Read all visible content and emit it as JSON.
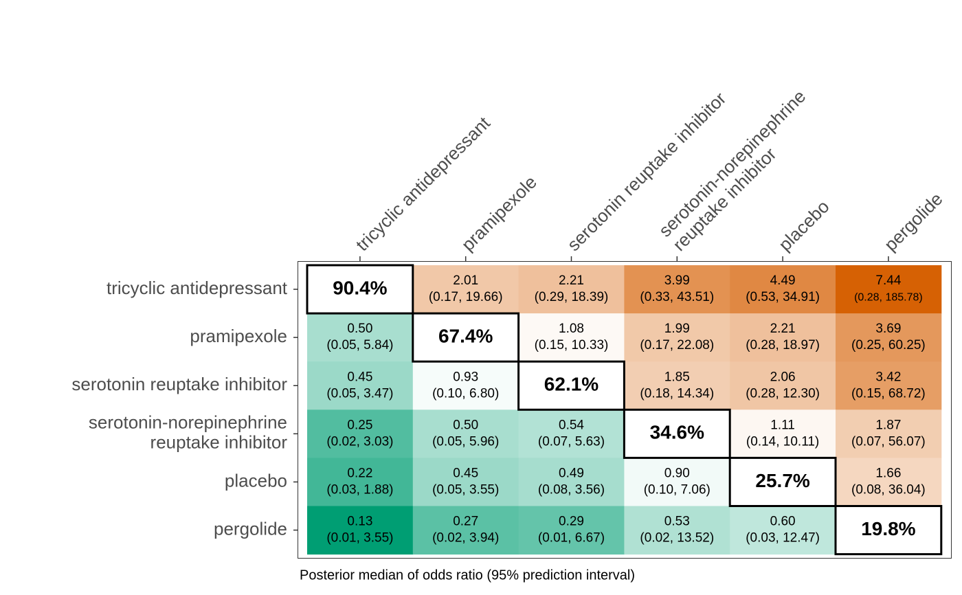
{
  "chart_data": {
    "type": "heatmap",
    "rows": [
      "tricyclic antidepressant",
      "pramipexole",
      "serotonin reuptake inhibitor",
      [
        "serotonin-norepinephrine",
        "reuptake inhibitor"
      ],
      "placebo",
      "pergolide"
    ],
    "columns": [
      "tricyclic antidepressant",
      "pramipexole",
      "serotonin reuptake inhibitor",
      [
        "serotonin-norepinephrine",
        "reuptake inhibitor"
      ],
      "placebo",
      "pergolide"
    ],
    "caption": "Posterior median of odds ratio (95% prediction interval)",
    "color_scale": {
      "low": "#009e73",
      "mid": "#ffffff",
      "high": "#d55e00",
      "log": true
    },
    "cells": [
      [
        {
          "value": 90.4,
          "label": "90.4%",
          "diagonal": true
        },
        {
          "value": 2.01,
          "interval": "(0.17, 19.66)"
        },
        {
          "value": 2.21,
          "interval": "(0.29, 18.39)"
        },
        {
          "value": 3.99,
          "interval": "(0.33, 43.51)"
        },
        {
          "value": 4.49,
          "interval": "(0.53, 34.91)"
        },
        {
          "value": 7.44,
          "interval": "(0.28, 185.78)"
        }
      ],
      [
        {
          "value": 0.5,
          "label": "0.50",
          "interval": "(0.05, 5.84)"
        },
        {
          "value": 67.4,
          "label": "67.4%",
          "diagonal": true
        },
        {
          "value": 1.08,
          "interval": "(0.15, 10.33)"
        },
        {
          "value": 1.99,
          "interval": "(0.17, 22.08)"
        },
        {
          "value": 2.21,
          "interval": "(0.28, 18.97)"
        },
        {
          "value": 3.69,
          "interval": "(0.25, 60.25)"
        }
      ],
      [
        {
          "value": 0.45,
          "interval": "(0.05, 3.47)"
        },
        {
          "value": 0.93,
          "interval": "(0.10, 6.80)"
        },
        {
          "value": 62.1,
          "label": "62.1%",
          "diagonal": true
        },
        {
          "value": 1.85,
          "interval": "(0.18, 14.34)"
        },
        {
          "value": 2.06,
          "interval": "(0.28, 12.30)"
        },
        {
          "value": 3.42,
          "interval": "(0.15, 68.72)"
        }
      ],
      [
        {
          "value": 0.25,
          "interval": "(0.02, 3.03)"
        },
        {
          "value": 0.5,
          "label": "0.50",
          "interval": "(0.05, 5.96)"
        },
        {
          "value": 0.54,
          "interval": "(0.07, 5.63)"
        },
        {
          "value": 34.6,
          "label": "34.6%",
          "diagonal": true
        },
        {
          "value": 1.11,
          "interval": "(0.14, 10.11)"
        },
        {
          "value": 1.87,
          "interval": "(0.07, 56.07)"
        }
      ],
      [
        {
          "value": 0.22,
          "interval": "(0.03, 1.88)"
        },
        {
          "value": 0.45,
          "interval": "(0.05, 3.55)"
        },
        {
          "value": 0.49,
          "interval": "(0.08, 3.56)"
        },
        {
          "value": 0.9,
          "label": "0.90",
          "interval": "(0.10, 7.06)"
        },
        {
          "value": 25.7,
          "label": "25.7%",
          "diagonal": true
        },
        {
          "value": 1.66,
          "interval": "(0.08, 36.04)"
        }
      ],
      [
        {
          "value": 0.13,
          "interval": "(0.01, 3.55)"
        },
        {
          "value": 0.27,
          "interval": "(0.02, 3.94)"
        },
        {
          "value": 0.29,
          "interval": "(0.01, 6.67)"
        },
        {
          "value": 0.53,
          "interval": "(0.02, 13.52)"
        },
        {
          "value": 0.6,
          "label": "0.60",
          "interval": "(0.03, 12.47)"
        },
        {
          "value": 19.8,
          "label": "19.8%",
          "diagonal": true
        }
      ]
    ]
  }
}
